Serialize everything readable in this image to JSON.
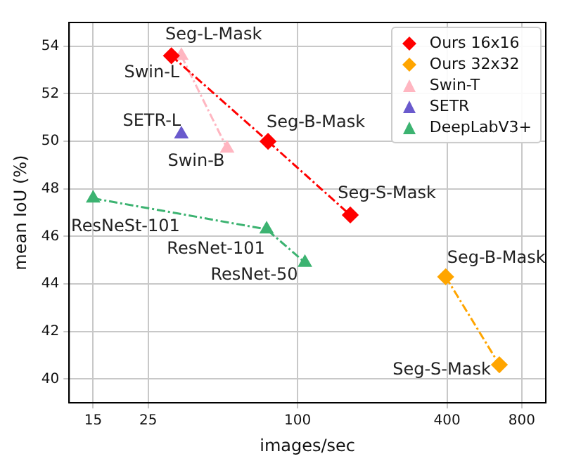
{
  "chart_data": {
    "type": "line",
    "xlabel": "images/sec",
    "ylabel": "mean IoU (%)",
    "log": "x",
    "xlim": [
      12,
      1000
    ],
    "xticks": [
      15,
      25,
      100,
      400,
      800
    ],
    "ylim": [
      39,
      55
    ],
    "yticks": [
      40,
      42,
      44,
      46,
      48,
      50,
      52,
      54
    ],
    "grid": true,
    "legend": "top right",
    "line_style": "dashed",
    "series": [
      {
        "name": "Ours 16x16",
        "color": "#ff0000",
        "marker": "diamond",
        "x": [
          31,
          76,
          163
        ],
        "values": [
          53.6,
          50.0,
          46.9
        ]
      },
      {
        "name": "Ours 32x32",
        "color": "#ffa500",
        "marker": "diamond",
        "x": [
          395,
          650
        ],
        "values": [
          44.3,
          40.6
        ]
      },
      {
        "name": "Swin-T",
        "color": "#ffb6c1",
        "marker": "triangle",
        "x": [
          34,
          52
        ],
        "values": [
          53.6,
          49.7
        ]
      },
      {
        "name": "SETR",
        "color": "#6a5acd",
        "marker": "triangle",
        "x": [
          34
        ],
        "values": [
          50.3
        ]
      },
      {
        "name": "DeepLabV3+",
        "color": "#3cb371",
        "marker": "triangle",
        "x": [
          15,
          75,
          107
        ],
        "values": [
          47.6,
          46.3,
          44.9
        ]
      }
    ],
    "annotations": [
      {
        "text": "Seg-L-Mask",
        "x": 31,
        "y": 53.6
      },
      {
        "text": "Swin-L",
        "x": 34,
        "y": 53.6
      },
      {
        "text": "SETR-L",
        "x": 34,
        "y": 50.3
      },
      {
        "text": "Swin-B",
        "x": 52,
        "y": 49.7
      },
      {
        "text": "Seg-B-Mask",
        "x": 76,
        "y": 50.0
      },
      {
        "text": "Seg-S-Mask",
        "x": 163,
        "y": 46.9
      },
      {
        "text": "ResNeSt-101",
        "x": 15,
        "y": 47.6
      },
      {
        "text": "ResNet-101",
        "x": 75,
        "y": 46.3
      },
      {
        "text": "ResNet-50",
        "x": 107,
        "y": 44.9
      },
      {
        "text": "Seg-B-Mask",
        "x": 395,
        "y": 44.3
      },
      {
        "text": "Seg-S-Mask",
        "x": 650,
        "y": 40.6
      }
    ]
  }
}
